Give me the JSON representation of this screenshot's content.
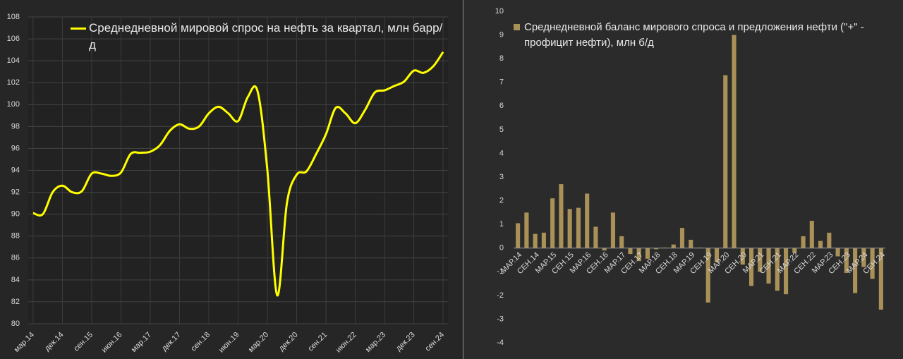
{
  "chart_data": [
    {
      "type": "line",
      "categories": [
        "мар.14",
        null,
        null,
        "дек.14",
        null,
        null,
        "сен.15",
        null,
        null,
        "июн.16",
        null,
        null,
        "мар.17",
        null,
        null,
        "дек.17",
        null,
        null,
        "сен.18",
        null,
        null,
        "июн.19",
        null,
        null,
        "мар.20",
        null,
        null,
        "дек.20",
        null,
        null,
        "сен.21",
        null,
        null,
        "июн.22",
        null,
        null,
        "мар.23",
        null,
        null,
        "дек.23",
        null,
        null,
        "сен.24"
      ],
      "series": [
        {
          "name": "Среднедневной мировой спрос на нефть за квартал, млн барр/д",
          "color": "#ffff00",
          "values": [
            90.1,
            90.0,
            92.0,
            92.6,
            92.0,
            92.1,
            93.7,
            93.7,
            93.5,
            93.8,
            95.5,
            95.6,
            95.7,
            96.3,
            97.6,
            98.2,
            97.8,
            98.0,
            99.2,
            99.8,
            99.2,
            98.5,
            100.7,
            101.2,
            94.0,
            82.6,
            91.0,
            93.6,
            93.9,
            95.5,
            97.3,
            99.7,
            99.2,
            98.3,
            99.5,
            101.1,
            101.3,
            101.7,
            102.1,
            103.1,
            102.9,
            103.5,
            104.8
          ]
        }
      ],
      "ylim": [
        80,
        108
      ],
      "yticks": [
        80,
        82,
        84,
        86,
        88,
        90,
        92,
        94,
        96,
        98,
        100,
        102,
        104,
        106,
        108
      ],
      "grid": true
    },
    {
      "type": "bar",
      "categories": [
        "МАР.14",
        null,
        "СЕН.14",
        null,
        "МАР.15",
        null,
        "СЕН.15",
        null,
        "МАР.16",
        null,
        "СЕН.16",
        null,
        "МАР.17",
        null,
        "СЕН.17",
        null,
        "МАР.18",
        null,
        "СЕН.18",
        null,
        "МАР.19",
        null,
        "СЕН.19",
        null,
        "МАР.20",
        null,
        "СЕН.20",
        null,
        "МАР.21",
        null,
        "СЕН.21",
        null,
        "МАР.22",
        null,
        "СЕН.22",
        null,
        "МАР.23",
        null,
        "СЕН.23",
        null,
        "МАР.24",
        null,
        "СЕН.24"
      ],
      "series": [
        {
          "name": "Среднедневной баланс мирового спроса и предложения нефти (\"+\" - профицит нефти), млн б/д",
          "color": "#a99157",
          "values": [
            1.05,
            1.5,
            0.6,
            0.65,
            2.1,
            2.7,
            1.65,
            1.7,
            2.3,
            0.9,
            -0.1,
            1.5,
            0.5,
            -0.25,
            -0.55,
            -0.45,
            -0.05,
            0.02,
            0.15,
            0.85,
            0.35,
            0.02,
            -2.3,
            -0.6,
            7.3,
            9.0,
            -0.7,
            -1.6,
            -1.0,
            -1.5,
            -1.8,
            -1.95,
            -0.2,
            0.5,
            1.15,
            0.3,
            0.65,
            -0.35,
            -1.05,
            -1.9,
            -0.8,
            -1.3,
            -2.6
          ]
        }
      ],
      "ylim": [
        -4,
        10
      ],
      "yticks": [
        -4,
        -3,
        -2,
        -1,
        0,
        1,
        2,
        3,
        4,
        5,
        6,
        7,
        8,
        9,
        10
      ],
      "grid": false
    }
  ]
}
